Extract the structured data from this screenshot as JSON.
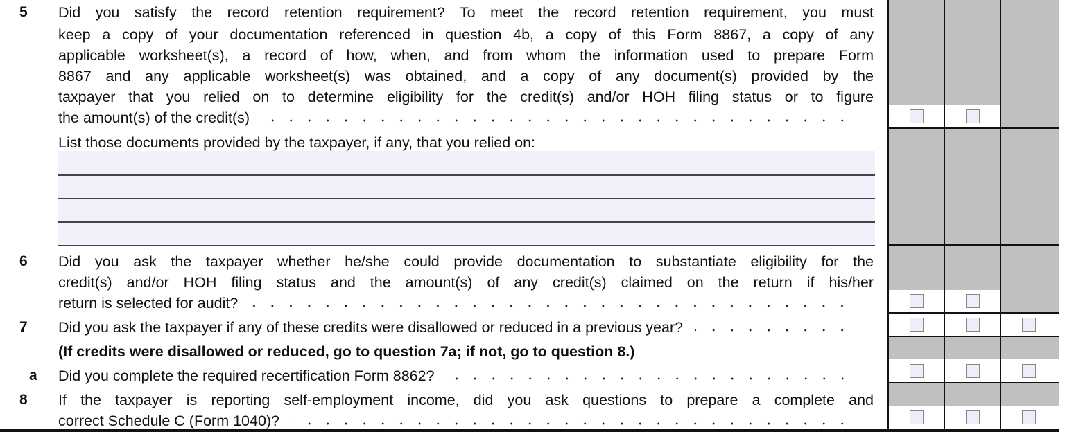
{
  "questions": {
    "q5": {
      "number": "5",
      "lines": [
        "Did you satisfy the record retention requirement? To meet the record retention requirement, you must",
        "keep a copy of your documentation referenced in question 4b, a copy of this Form 8867, a copy of any",
        "applicable worksheet(s), a record of how, when, and from whom the information used to prepare Form",
        "8867 and any applicable worksheet(s) was obtained, and a copy of any document(s) provided by the",
        "taxpayer that you relied on to determine eligibility for the credit(s) and/or HOH filing status or to figure",
        "the amount(s) of the credit(s)"
      ],
      "list_prompt": "List those documents provided by the taxpayer, if any, that you relied on:",
      "documents": [
        "",
        "",
        "",
        ""
      ]
    },
    "q6": {
      "number": "6",
      "lines": [
        "Did you ask the taxpayer whether he/she could provide documentation to substantiate eligibility for the",
        "credit(s) and/or HOH filing status and the amount(s) of any credit(s) claimed on the return if his/her",
        "return is selected for audit?"
      ]
    },
    "q7": {
      "number": "7",
      "lines": [
        "Did you ask the taxpayer if any of these credits were disallowed or reduced in a previous year?"
      ],
      "instruction": "(If credits were disallowed or reduced, go to question 7a; if not, go to question 8.)"
    },
    "q7a": {
      "number": "a",
      "lines": [
        "Did you complete the required recertification Form 8862?"
      ]
    },
    "q8": {
      "number": "8",
      "lines": [
        "If the taxpayer is reporting self-employment income, did you ask questions to prepare a complete and",
        "correct Schedule C (Form 1040)?"
      ]
    }
  },
  "checkboxes": {
    "q5": [
      false,
      false
    ],
    "q6": [
      false,
      false
    ],
    "q7": [
      false,
      false,
      false
    ],
    "q7a": [
      false,
      false,
      false
    ],
    "q8": [
      false,
      false,
      false
    ]
  },
  "colors": {
    "shade": "#c0c0c0",
    "field_fill": "#f0f1fb",
    "checkbox_fill": "#eceefa"
  }
}
